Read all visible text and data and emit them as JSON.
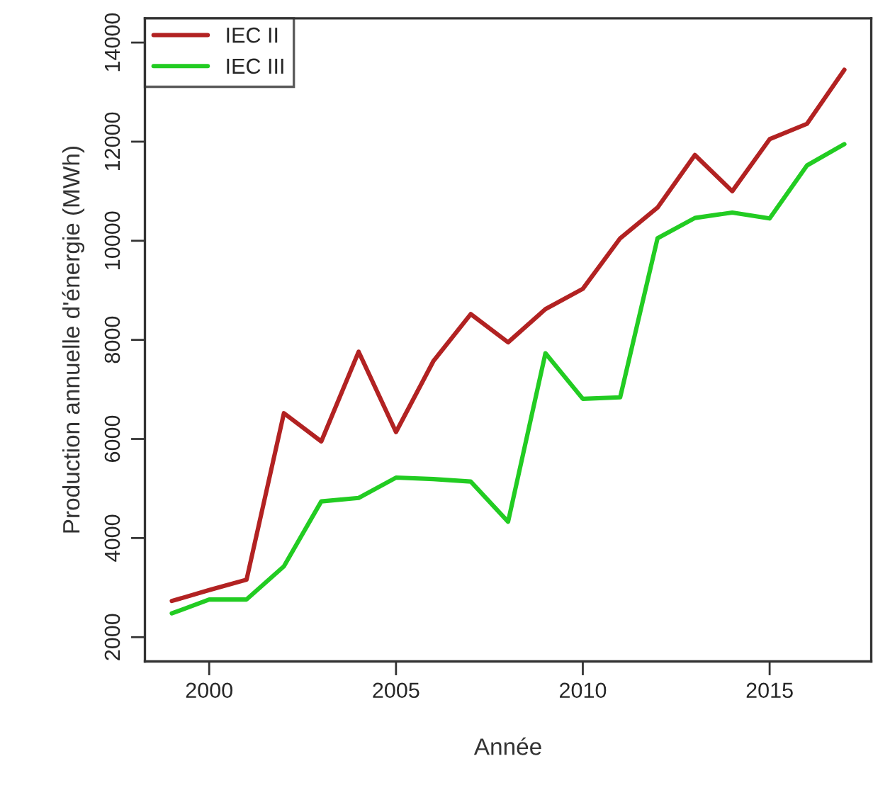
{
  "chart_data": {
    "type": "line",
    "xlabel": "Année",
    "ylabel": "Production annuelle d'énergie (MWh)",
    "x": [
      1999,
      2000,
      2001,
      2002,
      2003,
      2004,
      2005,
      2006,
      2007,
      2008,
      2009,
      2010,
      2011,
      2012,
      2013,
      2014,
      2015,
      2016,
      2017
    ],
    "series": [
      {
        "name": "IEC II",
        "color": "#b22222",
        "values": [
          2730,
          2950,
          3160,
          6520,
          5950,
          7760,
          6140,
          7570,
          8520,
          7950,
          8620,
          9030,
          10050,
          10670,
          11730,
          11000,
          12050,
          12360,
          13450
        ]
      },
      {
        "name": "IEC III",
        "color": "#22cc22",
        "values": [
          2480,
          2760,
          2760,
          3430,
          4740,
          4810,
          5220,
          5190,
          5140,
          4330,
          7730,
          6810,
          6840,
          10050,
          10460,
          10570,
          10450,
          11520,
          11950
        ]
      }
    ],
    "xlim": [
      1998.28,
      2017.72
    ],
    "xticks": [
      2000,
      2005,
      2010,
      2015
    ],
    "ylim": [
      1510,
      14490
    ],
    "yticks": [
      2000,
      4000,
      6000,
      8000,
      10000,
      12000,
      14000
    ],
    "grid": false,
    "legend": "top left",
    "line_style": "solid",
    "marker": "none"
  }
}
